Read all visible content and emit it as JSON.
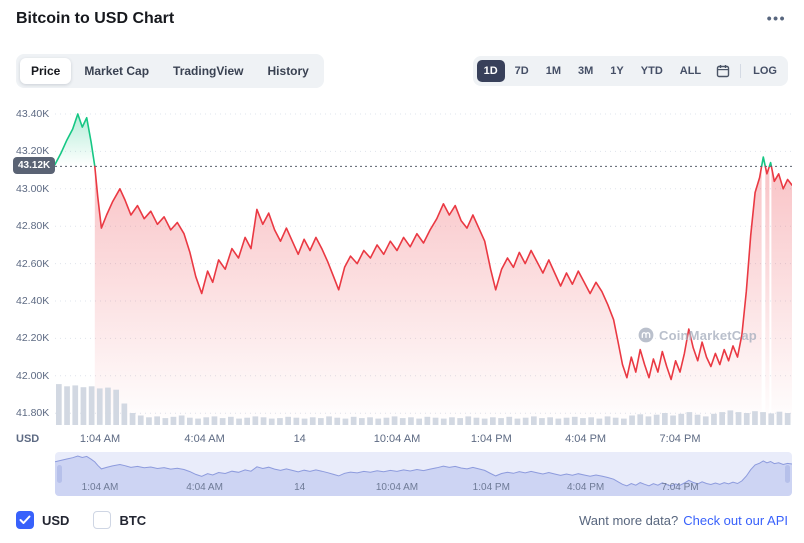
{
  "header": {
    "title": "Bitcoin to USD Chart",
    "more_options": "•••"
  },
  "toolbar": {
    "tabs": [
      {
        "label": "Price",
        "active": true
      },
      {
        "label": "Market Cap",
        "active": false
      },
      {
        "label": "TradingView",
        "active": false
      },
      {
        "label": "History",
        "active": false
      }
    ],
    "ranges": [
      {
        "label": "1D",
        "active": true
      },
      {
        "label": "7D",
        "active": false
      },
      {
        "label": "1M",
        "active": false
      },
      {
        "label": "3M",
        "active": false
      },
      {
        "label": "1Y",
        "active": false
      },
      {
        "label": "YTD",
        "active": false
      },
      {
        "label": "ALL",
        "active": false
      }
    ],
    "log_label": "LOG"
  },
  "watermark": "CoinMarketCap",
  "footer": {
    "currencies": [
      {
        "label": "USD",
        "checked": true
      },
      {
        "label": "BTC",
        "checked": false
      }
    ],
    "prompt": "Want more data?",
    "api_link": "Check out our API"
  },
  "chart_data": {
    "type": "line",
    "title": "Bitcoin to USD Chart",
    "pair": "BTC/USD",
    "selected_period": "1D",
    "y_unit": "USD",
    "open_value": 43.12,
    "open_label": "43.12K",
    "ylim": [
      41.74,
      43.45
    ],
    "grid": "horizontal-dotted",
    "legend_position": "none",
    "colors": {
      "up": "#16c784",
      "down": "#ea3943",
      "volume": "#d2d8e2",
      "accent": "#3861fb",
      "active_range_bg": "#38405a"
    },
    "y_ticks": [
      "43.40K",
      "43.20K",
      "43.00K",
      "42.80K",
      "42.60K",
      "42.40K",
      "42.20K",
      "42.00K",
      "41.80K"
    ],
    "x_labels": [
      {
        "pos": 0.061,
        "label": "1:04 AM"
      },
      {
        "pos": 0.203,
        "label": "4:04 AM"
      },
      {
        "pos": 0.332,
        "label": "14"
      },
      {
        "pos": 0.464,
        "label": "10:04 AM"
      },
      {
        "pos": 0.592,
        "label": "1:04 PM"
      },
      {
        "pos": 0.72,
        "label": "4:04 PM"
      },
      {
        "pos": 0.848,
        "label": "7:04 PM"
      }
    ],
    "points": [
      [
        0.0,
        43.13
      ],
      [
        0.008,
        43.19
      ],
      [
        0.016,
        43.26
      ],
      [
        0.024,
        43.32
      ],
      [
        0.031,
        43.4
      ],
      [
        0.037,
        43.33
      ],
      [
        0.043,
        43.38
      ],
      [
        0.049,
        43.25
      ],
      [
        0.054,
        43.12
      ],
      [
        0.058,
        42.96
      ],
      [
        0.063,
        42.79
      ],
      [
        0.07,
        42.86
      ],
      [
        0.078,
        42.93
      ],
      [
        0.088,
        43.0
      ],
      [
        0.095,
        42.94
      ],
      [
        0.103,
        42.86
      ],
      [
        0.112,
        42.91
      ],
      [
        0.121,
        42.84
      ],
      [
        0.13,
        42.88
      ],
      [
        0.139,
        42.81
      ],
      [
        0.148,
        42.85
      ],
      [
        0.157,
        42.78
      ],
      [
        0.166,
        42.82
      ],
      [
        0.175,
        42.76
      ],
      [
        0.183,
        42.66
      ],
      [
        0.191,
        42.53
      ],
      [
        0.199,
        42.44
      ],
      [
        0.207,
        42.56
      ],
      [
        0.214,
        42.5
      ],
      [
        0.222,
        42.62
      ],
      [
        0.231,
        42.57
      ],
      [
        0.24,
        42.68
      ],
      [
        0.249,
        42.63
      ],
      [
        0.258,
        42.74
      ],
      [
        0.266,
        42.68
      ],
      [
        0.274,
        42.89
      ],
      [
        0.282,
        42.81
      ],
      [
        0.29,
        42.87
      ],
      [
        0.298,
        42.78
      ],
      [
        0.306,
        42.72
      ],
      [
        0.314,
        42.79
      ],
      [
        0.322,
        42.72
      ],
      [
        0.33,
        42.65
      ],
      [
        0.338,
        42.73
      ],
      [
        0.346,
        42.67
      ],
      [
        0.354,
        42.74
      ],
      [
        0.362,
        42.68
      ],
      [
        0.37,
        42.61
      ],
      [
        0.378,
        42.53
      ],
      [
        0.385,
        42.46
      ],
      [
        0.393,
        42.58
      ],
      [
        0.401,
        42.64
      ],
      [
        0.41,
        42.6
      ],
      [
        0.419,
        42.67
      ],
      [
        0.428,
        42.63
      ],
      [
        0.437,
        42.7
      ],
      [
        0.446,
        42.65
      ],
      [
        0.455,
        42.72
      ],
      [
        0.464,
        42.67
      ],
      [
        0.473,
        42.74
      ],
      [
        0.482,
        42.69
      ],
      [
        0.491,
        42.76
      ],
      [
        0.5,
        42.71
      ],
      [
        0.509,
        42.78
      ],
      [
        0.518,
        42.84
      ],
      [
        0.527,
        42.92
      ],
      [
        0.535,
        42.86
      ],
      [
        0.543,
        42.91
      ],
      [
        0.551,
        42.83
      ],
      [
        0.559,
        42.79
      ],
      [
        0.567,
        42.86
      ],
      [
        0.575,
        42.79
      ],
      [
        0.583,
        42.72
      ],
      [
        0.591,
        42.57
      ],
      [
        0.598,
        42.46
      ],
      [
        0.606,
        42.57
      ],
      [
        0.614,
        42.63
      ],
      [
        0.622,
        42.58
      ],
      [
        0.63,
        42.66
      ],
      [
        0.638,
        42.6
      ],
      [
        0.646,
        42.67
      ],
      [
        0.654,
        42.61
      ],
      [
        0.662,
        42.55
      ],
      [
        0.67,
        42.62
      ],
      [
        0.678,
        42.55
      ],
      [
        0.686,
        42.48
      ],
      [
        0.694,
        42.55
      ],
      [
        0.702,
        42.49
      ],
      [
        0.71,
        42.56
      ],
      [
        0.718,
        42.5
      ],
      [
        0.726,
        42.44
      ],
      [
        0.734,
        42.5
      ],
      [
        0.742,
        42.45
      ],
      [
        0.75,
        42.38
      ],
      [
        0.758,
        42.3
      ],
      [
        0.764,
        42.18
      ],
      [
        0.77,
        42.06
      ],
      [
        0.776,
        41.99
      ],
      [
        0.782,
        42.1
      ],
      [
        0.788,
        42.02
      ],
      [
        0.794,
        42.14
      ],
      [
        0.8,
        42.06
      ],
      [
        0.806,
        41.99
      ],
      [
        0.812,
        42.09
      ],
      [
        0.818,
        42.02
      ],
      [
        0.824,
        42.13
      ],
      [
        0.83,
        42.05
      ],
      [
        0.836,
        41.98
      ],
      [
        0.842,
        42.08
      ],
      [
        0.848,
        42.02
      ],
      [
        0.854,
        42.12
      ],
      [
        0.86,
        42.25
      ],
      [
        0.866,
        42.15
      ],
      [
        0.872,
        42.08
      ],
      [
        0.878,
        42.18
      ],
      [
        0.884,
        42.1
      ],
      [
        0.89,
        42.05
      ],
      [
        0.896,
        42.12
      ],
      [
        0.902,
        42.06
      ],
      [
        0.908,
        42.14
      ],
      [
        0.914,
        42.08
      ],
      [
        0.92,
        42.16
      ],
      [
        0.926,
        42.1
      ],
      [
        0.932,
        42.22
      ],
      [
        0.938,
        42.45
      ],
      [
        0.944,
        42.75
      ],
      [
        0.95,
        42.98
      ],
      [
        0.956,
        43.06
      ],
      [
        0.961,
        43.17
      ],
      [
        0.966,
        43.08
      ],
      [
        0.971,
        43.14
      ],
      [
        0.976,
        43.04
      ],
      [
        0.982,
        43.08
      ],
      [
        0.988,
        43.0
      ],
      [
        0.994,
        43.05
      ],
      [
        1.0,
        43.02
      ]
    ],
    "volume": [
      0.95,
      0.9,
      0.92,
      0.88,
      0.9,
      0.85,
      0.87,
      0.82,
      0.5,
      0.28,
      0.22,
      0.18,
      0.2,
      0.16,
      0.19,
      0.22,
      0.17,
      0.15,
      0.18,
      0.2,
      0.16,
      0.19,
      0.15,
      0.17,
      0.2,
      0.18,
      0.15,
      0.16,
      0.19,
      0.17,
      0.15,
      0.18,
      0.16,
      0.2,
      0.17,
      0.15,
      0.19,
      0.16,
      0.18,
      0.15,
      0.17,
      0.2,
      0.16,
      0.18,
      0.15,
      0.19,
      0.17,
      0.15,
      0.18,
      0.16,
      0.2,
      0.17,
      0.15,
      0.18,
      0.16,
      0.19,
      0.15,
      0.17,
      0.2,
      0.16,
      0.18,
      0.15,
      0.17,
      0.19,
      0.16,
      0.18,
      0.15,
      0.2,
      0.17,
      0.15,
      0.22,
      0.25,
      0.2,
      0.24,
      0.28,
      0.22,
      0.26,
      0.3,
      0.24,
      0.2,
      0.26,
      0.3,
      0.34,
      0.3,
      0.28,
      0.32,
      0.3,
      0.27,
      0.31,
      0.28
    ]
  }
}
